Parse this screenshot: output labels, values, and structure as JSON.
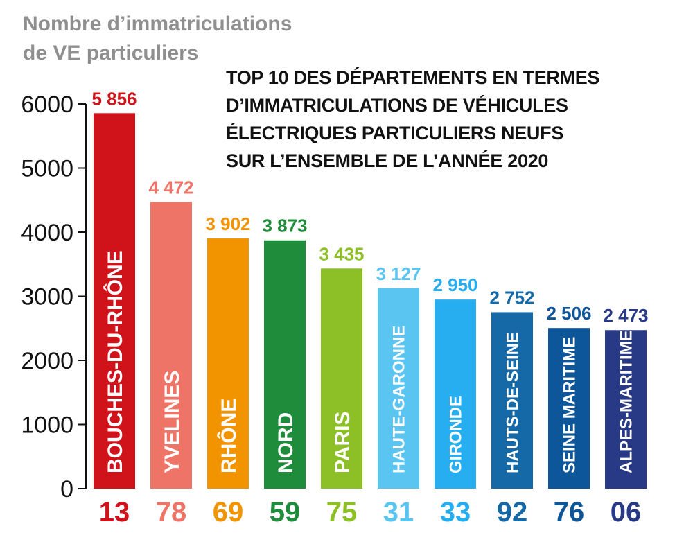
{
  "header": {
    "ylabel_line1": "Nombre d’immatriculations",
    "ylabel_line2": "de VE particuliers",
    "title_lines": [
      "TOP 10 DES DÉPARTEMENTS EN TERMES",
      "D’IMMATRICULATIONS DE VÉHICULES",
      "ÉLECTRIQUES PARTICULIERS NEUFS",
      "SUR L’ENSEMBLE DE L’ANNÉE 2020"
    ]
  },
  "chart_data": {
    "type": "bar",
    "title": "TOP 10 DES DÉPARTEMENTS EN TERMES D’IMMATRICULATIONS DE VÉHICULES ÉLECTRIQUES PARTICULIERS NEUFS SUR L’ENSEMBLE DE L’ANNÉE 2020",
    "ylabel": "Nombre d’immatriculations de VE particuliers",
    "xlabel": "",
    "ylim": [
      0,
      6000
    ],
    "yticks": [
      0,
      1000,
      2000,
      3000,
      4000,
      5000,
      6000
    ],
    "categories": [
      "BOUCHES-DU-RHÔNE",
      "YVELINES",
      "RHÔNE",
      "NORD",
      "PARIS",
      "HAUTE-GARONNE",
      "GIRONDE",
      "HAUTS-DE-SEINE",
      "SEINE MARITIME",
      "ALPES-MARITIMES"
    ],
    "codes": [
      "13",
      "78",
      "69",
      "59",
      "75",
      "31",
      "33",
      "92",
      "76",
      "06"
    ],
    "values": [
      5856,
      4472,
      3902,
      3873,
      3435,
      3127,
      2950,
      2752,
      2506,
      2473
    ],
    "value_labels": [
      "5 856",
      "4 472",
      "3 902",
      "3 873",
      "3 435",
      "3 127",
      "2 950",
      "2 752",
      "2 506",
      "2 473"
    ],
    "colors": [
      "#d0121b",
      "#ee7468",
      "#f29400",
      "#1e8c3a",
      "#8dbf26",
      "#5bc5f2",
      "#27aef0",
      "#1569a6",
      "#0d5699",
      "#283a85"
    ],
    "grid": false,
    "legend": "none"
  }
}
